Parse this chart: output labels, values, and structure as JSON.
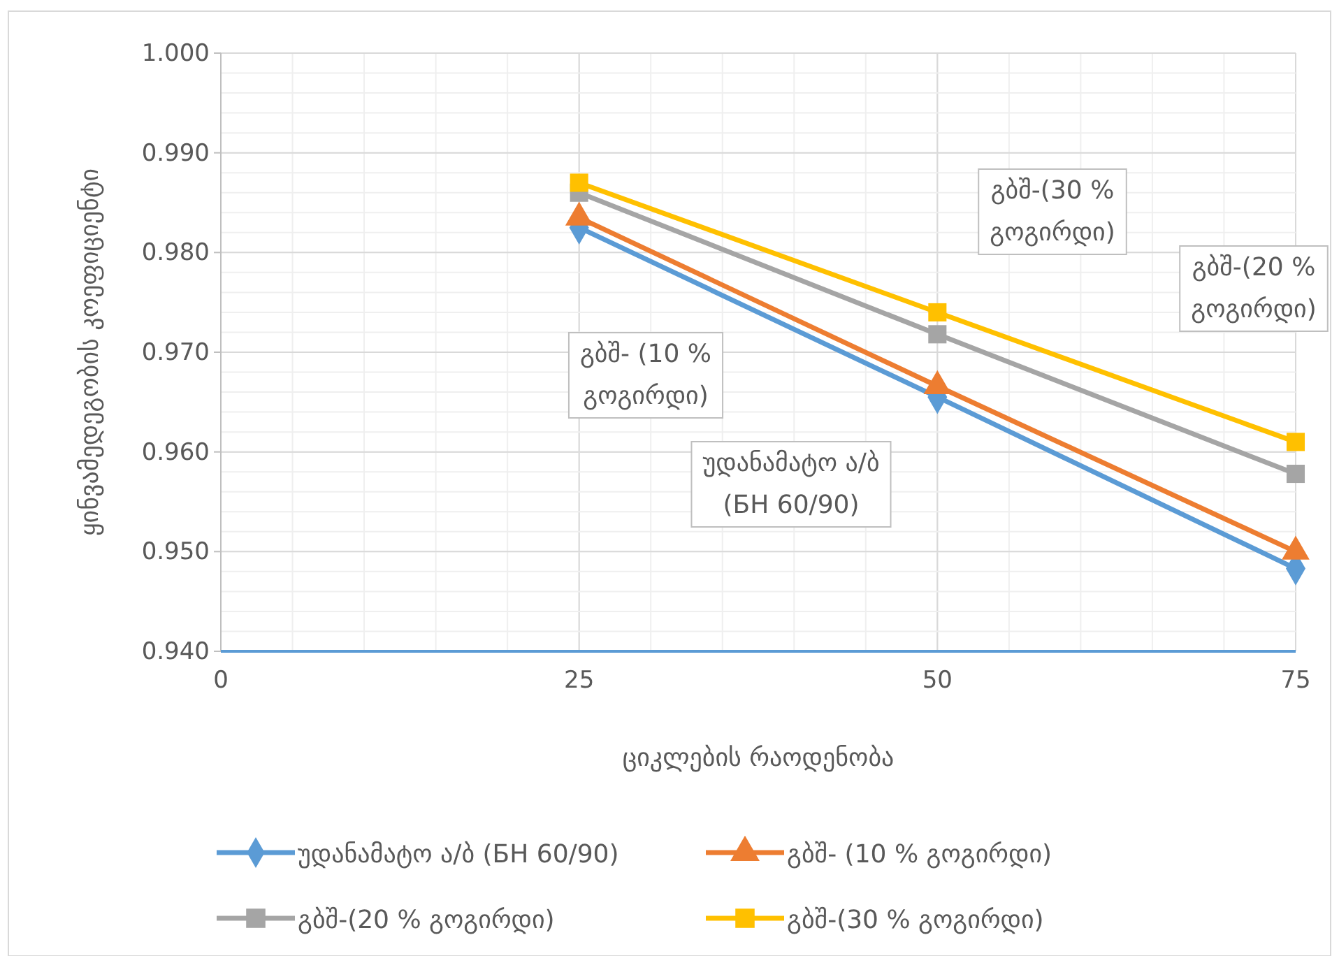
{
  "chart_data": {
    "type": "line",
    "xlabel": "ციკლების რაოდენობა",
    "ylabel": "ყინვამედეგობის კოეფიციენტი",
    "x": [
      25,
      50,
      75
    ],
    "series": [
      {
        "name": "უდანამატო ა/ბ (БН 60/90)",
        "color": "#5b9bd5",
        "marker": "diamond",
        "values": [
          0.9825,
          0.9655,
          0.9483
        ]
      },
      {
        "name": "გბშ- (10 %  გოგირდი)",
        "color": "#ed7d31",
        "marker": "triangle",
        "values": [
          0.9835,
          0.9666,
          0.95
        ]
      },
      {
        "name": "გბშ-(20 %  გოგირდი)",
        "color": "#a5a5a5",
        "marker": "square",
        "values": [
          0.986,
          0.9718,
          0.9578
        ]
      },
      {
        "name": "გბშ-(30 %  გოგირდი)",
        "color": "#ffc000",
        "marker": "square",
        "values": [
          0.987,
          0.974,
          0.961
        ]
      }
    ],
    "xlim": [
      0,
      75
    ],
    "xticks": [
      0,
      25,
      50,
      75
    ],
    "ylim": [
      0.94,
      1.0
    ],
    "yticks": [
      {
        "value": 0.94,
        "label": "0.940"
      },
      {
        "value": 0.95,
        "label": "0.950"
      },
      {
        "value": 0.96,
        "label": "0.960"
      },
      {
        "value": 0.97,
        "label": "0.970"
      },
      {
        "value": 0.98,
        "label": "0.980"
      },
      {
        "value": 0.99,
        "label": "0.990"
      },
      {
        "value": 1.0,
        "label": "1.000"
      }
    ],
    "grid": true,
    "legend": "bottom",
    "line_style": "solid",
    "annotations": [
      "გბშ-(30 %\nგოგირდი)",
      "გბშ-(20 %\nგოგირდი)",
      "გბშ- (10 %\nგოგირდი)",
      "უდანამატო ა/ბ\n(БН 60/90)"
    ]
  }
}
